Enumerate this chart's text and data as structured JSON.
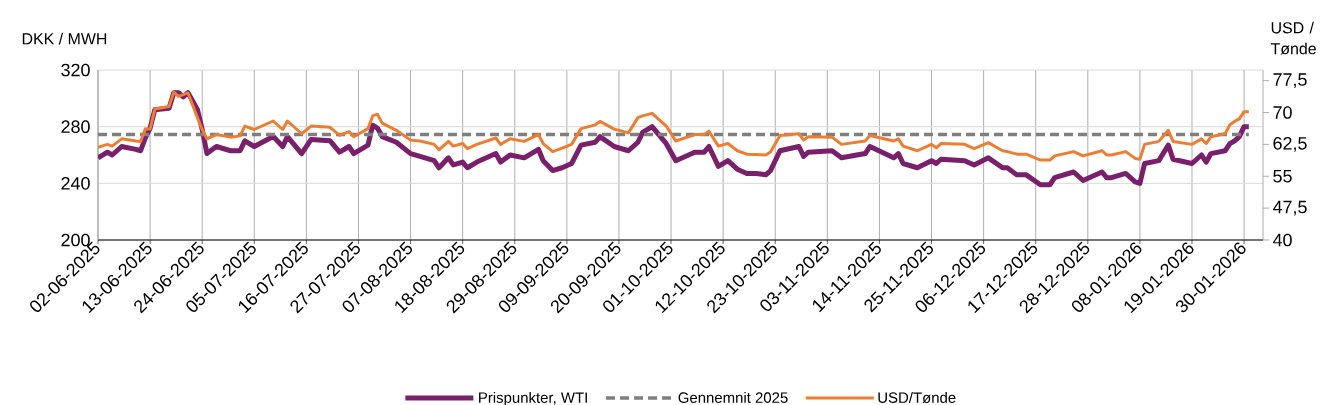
{
  "chart_data": {
    "type": "line",
    "ylabel": "DKK / MWH",
    "y2label": "USD / Tønde",
    "x": [
      "2025-06-02",
      "2025-06-04",
      "2025-06-05",
      "2025-06-07",
      "2025-06-10",
      "2025-06-11",
      "2025-06-12",
      "2025-06-13",
      "2025-06-14",
      "2025-06-17",
      "2025-06-18",
      "2025-06-19",
      "2025-06-20",
      "2025-06-21",
      "2025-06-23",
      "2025-06-24",
      "2025-06-25",
      "2025-06-27",
      "2025-06-30",
      "2025-07-02",
      "2025-07-03",
      "2025-07-05",
      "2025-07-09",
      "2025-07-11",
      "2025-07-12",
      "2025-07-15",
      "2025-07-17",
      "2025-07-21",
      "2025-07-23",
      "2025-07-25",
      "2025-07-26",
      "2025-07-29",
      "2025-07-30",
      "2025-07-31",
      "2025-08-01",
      "2025-08-04",
      "2025-08-07",
      "2025-08-09",
      "2025-08-12",
      "2025-08-13",
      "2025-08-15",
      "2025-08-16",
      "2025-08-18",
      "2025-08-19",
      "2025-08-21",
      "2025-08-25",
      "2025-08-26",
      "2025-08-28",
      "2025-08-31",
      "2025-09-03",
      "2025-09-04",
      "2025-09-06",
      "2025-09-08",
      "2025-09-10",
      "2025-09-12",
      "2025-09-15",
      "2025-09-16",
      "2025-09-19",
      "2025-09-22",
      "2025-09-24",
      "2025-09-25",
      "2025-09-27",
      "2025-09-30",
      "2025-10-02",
      "2025-10-06",
      "2025-10-08",
      "2025-10-09",
      "2025-10-11",
      "2025-10-13",
      "2025-10-15",
      "2025-10-17",
      "2025-10-19",
      "2025-10-21",
      "2025-10-22",
      "2025-10-24",
      "2025-10-28",
      "2025-10-29",
      "2025-10-30",
      "2025-11-04",
      "2025-11-06",
      "2025-11-11",
      "2025-11-12",
      "2025-11-17",
      "2025-11-18",
      "2025-11-19",
      "2025-11-22",
      "2025-11-25",
      "2025-11-26",
      "2025-11-27",
      "2025-12-02",
      "2025-12-04",
      "2025-12-07",
      "2025-12-10",
      "2025-12-11",
      "2025-12-13",
      "2025-12-15",
      "2025-12-18",
      "2025-12-20",
      "2025-12-21",
      "2025-12-25",
      "2025-12-27",
      "2025-12-31",
      "2026-01-01",
      "2026-01-02",
      "2026-01-05",
      "2026-01-07",
      "2026-01-08",
      "2026-01-09",
      "2026-01-12",
      "2026-01-14",
      "2026-01-15",
      "2026-01-19",
      "2026-01-21",
      "2026-01-22",
      "2026-01-23",
      "2026-01-26",
      "2026-01-27",
      "2026-01-28",
      "2026-01-29",
      "2026-01-30",
      "2026-01-31"
    ],
    "series": [
      {
        "name": "Prispunkter, WTI",
        "color": "#7a1f6b",
        "values": [
          258,
          262,
          260,
          266,
          264,
          263,
          272,
          279,
          292,
          293,
          304,
          304,
          301,
          304,
          292,
          278,
          261,
          266,
          263,
          263,
          270,
          266,
          273,
          266,
          273,
          261,
          271,
          270,
          262,
          266,
          261,
          267,
          281,
          279,
          273,
          269,
          261,
          259,
          256,
          251,
          258,
          253,
          255,
          251,
          255,
          261,
          255,
          260,
          258,
          264,
          256,
          249,
          251,
          254,
          267,
          269,
          273,
          266,
          263,
          269,
          276,
          280,
          268,
          256,
          262,
          262,
          266,
          252,
          256,
          250,
          247,
          247,
          246,
          249,
          263,
          266,
          259,
          262,
          263,
          258,
          261,
          266,
          258,
          261,
          254,
          251,
          256,
          254,
          257,
          256,
          253,
          258,
          251,
          251,
          246,
          246,
          239,
          239,
          244,
          248,
          242,
          248,
          244,
          244,
          247,
          241,
          240,
          254,
          256,
          267,
          257,
          254,
          260,
          255,
          261,
          263,
          268,
          270,
          273,
          280,
          280
        ]
      },
      {
        "name": "Gennemnit 2025",
        "color": "#7f7f7f",
        "line_style": "dashed",
        "x": [
          "2025-06-02",
          "2026-01-31"
        ],
        "values": [
          274.5,
          274.5
        ]
      },
      {
        "name": "USD/Tønde",
        "color": "#ed7d31",
        "axis": "y2",
        "values": [
          61.8,
          62.5,
          62.1,
          63.8,
          63.3,
          63.2,
          66.2,
          66.1,
          70.8,
          71.4,
          74.8,
          73.8,
          74.2,
          74.6,
          68.8,
          66,
          63.8,
          64.8,
          64.2,
          64.5,
          66.8,
          66,
          68,
          66,
          68,
          65,
          66.8,
          66.5,
          64.6,
          65.5,
          64.3,
          66.2,
          69.2,
          69.6,
          67.5,
          65.8,
          63.5,
          63.3,
          62.5,
          61.2,
          63.2,
          62.1,
          62.7,
          61.5,
          62.5,
          64,
          62.5,
          63.8,
          63.2,
          64.8,
          62.7,
          60.8,
          61.6,
          62.5,
          66.2,
          67.1,
          67.9,
          66.1,
          65.2,
          68.8,
          69.2,
          69.8,
          66.8,
          63.3,
          64.8,
          64.8,
          65.6,
          62.1,
          62.7,
          61,
          60.2,
          60.1,
          60,
          60.7,
          64.6,
          65,
          63.5,
          64.3,
          64.2,
          62.5,
          63.3,
          64.6,
          63.3,
          63.8,
          62.1,
          61,
          62.5,
          61.7,
          62.7,
          62.5,
          61.5,
          62.9,
          61,
          60.8,
          60.2,
          60.2,
          58.8,
          58.8,
          59.8,
          60.8,
          59.8,
          61,
          60,
          60,
          60.8,
          59.2,
          59,
          62.5,
          63.2,
          65.8,
          63.2,
          62.5,
          63.8,
          62.7,
          64.3,
          65,
          67.1,
          67.9,
          68.5,
          70.2,
          70.2
        ]
      }
    ],
    "xlim": [
      "2025-06-02",
      "2026-02-03"
    ],
    "xticks": [
      {
        "value": "2025-06-02",
        "label": "02-06-2025"
      },
      {
        "value": "2025-06-13",
        "label": "13-06-2025"
      },
      {
        "value": "2025-06-24",
        "label": "24-06-2025"
      },
      {
        "value": "2025-07-05",
        "label": "05-07-2025"
      },
      {
        "value": "2025-07-16",
        "label": "16-07-2025"
      },
      {
        "value": "2025-07-27",
        "label": "27-07-2025"
      },
      {
        "value": "2025-08-07",
        "label": "07-08-2025"
      },
      {
        "value": "2025-08-18",
        "label": "18-08-2025"
      },
      {
        "value": "2025-08-29",
        "label": "29-08-2025"
      },
      {
        "value": "2025-09-09",
        "label": "09-09-2025"
      },
      {
        "value": "2025-09-20",
        "label": "20-09-2025"
      },
      {
        "value": "2025-10-01",
        "label": "01-10-2025"
      },
      {
        "value": "2025-10-12",
        "label": "12-10-2025"
      },
      {
        "value": "2025-10-23",
        "label": "23-10-2025"
      },
      {
        "value": "2025-11-03",
        "label": "03-11-2025"
      },
      {
        "value": "2025-11-14",
        "label": "14-11-2025"
      },
      {
        "value": "2025-11-25",
        "label": "25-11-2025"
      },
      {
        "value": "2025-12-06",
        "label": "06-12-2025"
      },
      {
        "value": "2025-12-17",
        "label": "17-12-2025"
      },
      {
        "value": "2025-12-28",
        "label": "28-12-2025"
      },
      {
        "value": "2026-01-08",
        "label": "08-01-2026"
      },
      {
        "value": "2026-01-19",
        "label": "19-01-2026"
      },
      {
        "value": "2026-01-30",
        "label": "30-01-2026"
      }
    ],
    "ylim": [
      200,
      320
    ],
    "yticks": [
      200,
      240,
      280,
      320
    ],
    "y2lim": [
      40,
      80
    ],
    "y2ticks": [
      40,
      {
        "value": 47.5,
        "label": "47,5"
      },
      55,
      {
        "value": 62.5,
        "label": "62,5"
      },
      70,
      {
        "value": 77.5,
        "label": "77,5"
      }
    ],
    "grid": true,
    "legend": "bottom"
  }
}
